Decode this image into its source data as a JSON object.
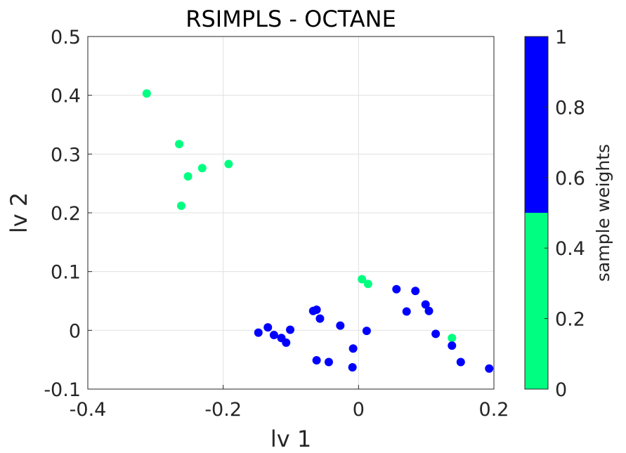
{
  "chart_data": {
    "type": "scatter",
    "title": "RSIMPLS - OCTANE",
    "xlabel": "lv 1",
    "ylabel": "lv 2",
    "xlim": [
      -0.4,
      0.2
    ],
    "ylim": [
      -0.1,
      0.5
    ],
    "xticks": [
      -0.4,
      -0.2,
      0,
      0.2
    ],
    "xtick_labels": [
      "-0.4",
      "-0.2",
      "0",
      "0.2"
    ],
    "yticks": [
      -0.1,
      0,
      0.1,
      0.2,
      0.3,
      0.4,
      0.5
    ],
    "ytick_labels": [
      "-0.1",
      "0",
      "0.1",
      "0.2",
      "0.3",
      "0.4",
      "0.5"
    ],
    "grid": true,
    "colorbar": {
      "label": "sample weights",
      "range": [
        0,
        1
      ],
      "ticks": [
        0,
        0.2,
        0.4,
        0.6,
        0.8,
        1
      ],
      "tick_labels": [
        "0",
        "0.2",
        "0.4",
        "0.6",
        "0.8",
        "1"
      ],
      "bands": [
        {
          "from": 0,
          "to": 0.5,
          "color": "#00ff80"
        },
        {
          "from": 0.5,
          "to": 1,
          "color": "#0000ff"
        }
      ]
    },
    "colors": {
      "weight_0": "#00ff80",
      "weight_1": "#0000ff"
    },
    "points": [
      {
        "x": -0.313,
        "y": 0.403,
        "w": 0
      },
      {
        "x": -0.265,
        "y": 0.317,
        "w": 0
      },
      {
        "x": -0.252,
        "y": 0.262,
        "w": 0
      },
      {
        "x": -0.231,
        "y": 0.276,
        "w": 0
      },
      {
        "x": -0.192,
        "y": 0.283,
        "w": 0
      },
      {
        "x": -0.262,
        "y": 0.212,
        "w": 0
      },
      {
        "x": 0.005,
        "y": 0.087,
        "w": 0
      },
      {
        "x": 0.014,
        "y": 0.079,
        "w": 0
      },
      {
        "x": 0.138,
        "y": -0.013,
        "w": 0
      },
      {
        "x": -0.148,
        "y": -0.004,
        "w": 1
      },
      {
        "x": -0.134,
        "y": 0.005,
        "w": 1
      },
      {
        "x": -0.125,
        "y": -0.008,
        "w": 1
      },
      {
        "x": -0.114,
        "y": -0.013,
        "w": 1
      },
      {
        "x": -0.107,
        "y": -0.021,
        "w": 1
      },
      {
        "x": -0.101,
        "y": 0.001,
        "w": 1
      },
      {
        "x": -0.067,
        "y": 0.033,
        "w": 1
      },
      {
        "x": -0.062,
        "y": 0.035,
        "w": 1
      },
      {
        "x": -0.057,
        "y": 0.02,
        "w": 1
      },
      {
        "x": -0.062,
        "y": -0.051,
        "w": 1
      },
      {
        "x": -0.044,
        "y": -0.054,
        "w": 1
      },
      {
        "x": -0.027,
        "y": 0.008,
        "w": 1
      },
      {
        "x": -0.008,
        "y": -0.031,
        "w": 1
      },
      {
        "x": -0.009,
        "y": -0.063,
        "w": 1
      },
      {
        "x": 0.012,
        "y": -0.001,
        "w": 1
      },
      {
        "x": 0.056,
        "y": 0.07,
        "w": 1
      },
      {
        "x": 0.071,
        "y": 0.032,
        "w": 1
      },
      {
        "x": 0.084,
        "y": 0.067,
        "w": 1
      },
      {
        "x": 0.099,
        "y": 0.044,
        "w": 1
      },
      {
        "x": 0.104,
        "y": 0.033,
        "w": 1
      },
      {
        "x": 0.114,
        "y": -0.006,
        "w": 1
      },
      {
        "x": 0.138,
        "y": -0.026,
        "w": 1
      },
      {
        "x": 0.151,
        "y": -0.054,
        "w": 1
      },
      {
        "x": 0.193,
        "y": -0.065,
        "w": 1
      }
    ]
  }
}
